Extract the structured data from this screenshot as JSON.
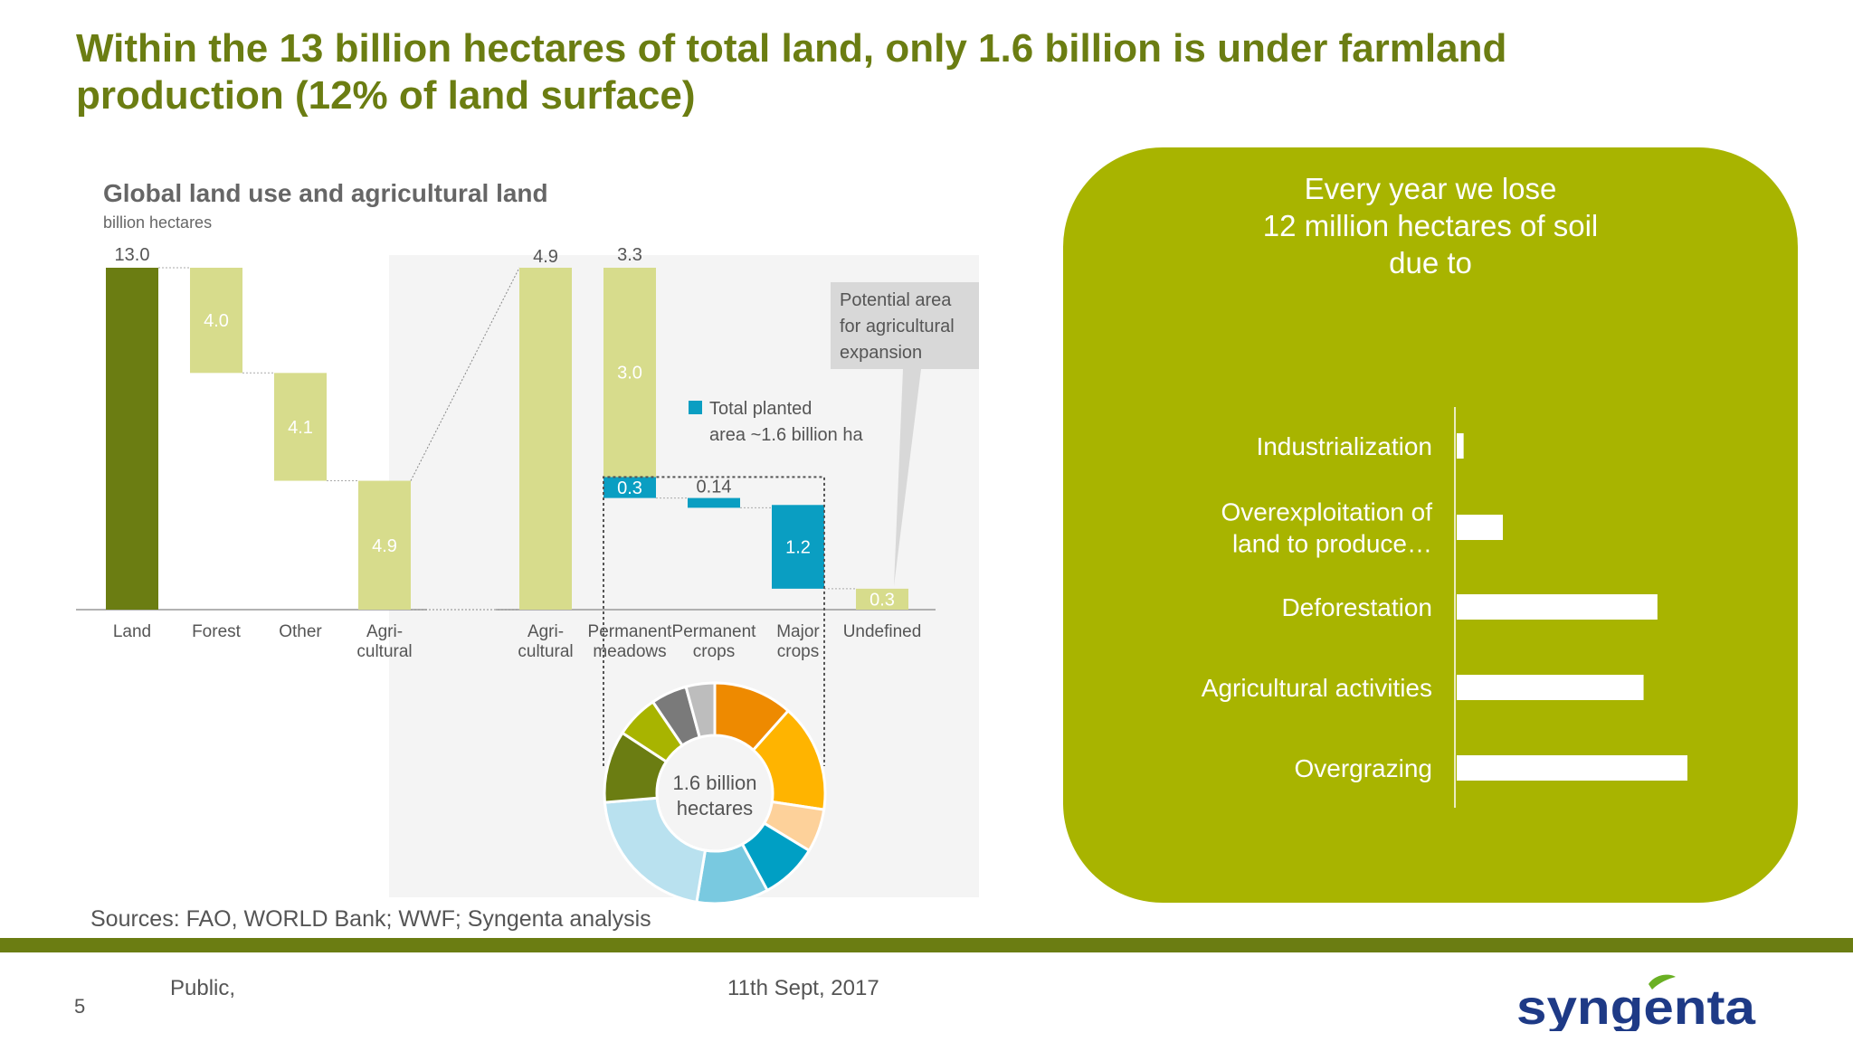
{
  "slide": {
    "title": "Within the 13 billion hectares of total land, only 1.6 billion is under farmland production (12% of land surface)",
    "page_number": "5",
    "classification": "Public,",
    "date": "11th Sept, 2017",
    "sources": "Sources: FAO, WORLD Bank; WWF; Syngenta analysis",
    "logo_text": "syngenta"
  },
  "colors": {
    "title_green": "#6b7d12",
    "dark_green": "#6b7d12",
    "light_green": "#d7dc8c",
    "teal": "#0a9ec2",
    "panel_green": "#a8b400",
    "logo_blue": "#1e3a86",
    "logo_leaf": "#6ab023"
  },
  "chart_data": [
    {
      "type": "bar",
      "title": "Global land use and agricultural land",
      "ylabel": "billion hectares",
      "ylim": [
        0,
        13.0
      ],
      "bars": [
        {
          "category": "Land",
          "label_lines": [
            "Land"
          ],
          "base": 0,
          "value": 13.0,
          "display": "13.0",
          "color": "#6b7d12",
          "label_pos": "above"
        },
        {
          "category": "Forest",
          "label_lines": [
            "Forest"
          ],
          "base": 9.0,
          "value": 4.0,
          "display": "4.0",
          "color": "#d7dc8c",
          "label_pos": "inside"
        },
        {
          "category": "Other",
          "label_lines": [
            "Other"
          ],
          "base": 4.9,
          "value": 4.1,
          "display": "4.1",
          "color": "#d7dc8c",
          "label_pos": "inside"
        },
        {
          "category": "Agri-cultural",
          "label_lines": [
            "Agri-",
            "cultural"
          ],
          "base": 0,
          "value": 4.9,
          "display": "4.9",
          "color": "#d7dc8c",
          "label_pos": "inside"
        }
      ]
    },
    {
      "type": "bar",
      "ylim": [
        0,
        4.9
      ],
      "bars": [
        {
          "category": "Agri-cultural",
          "label_lines": [
            "Agri-",
            "cultural"
          ],
          "base": 0,
          "value": 4.9,
          "display": "4.9",
          "color": "#d7dc8c",
          "label_pos": "above"
        },
        {
          "category": "Permanent meadows",
          "label_lines": [
            "Permanent",
            "meadows"
          ],
          "base": 1.6,
          "value": 3.3,
          "display": "3.3",
          "color": "#d7dc8c",
          "label_pos": "above",
          "split": {
            "light_value": 3.0,
            "light_display": "3.0",
            "teal_value": 0.3,
            "teal_display": "0.3"
          }
        },
        {
          "category": "Permanent crops",
          "label_lines": [
            "Permanent",
            "crops"
          ],
          "base": 1.46,
          "value": 0.14,
          "display": "0.14",
          "color": "#0a9ec2",
          "label_pos": "above"
        },
        {
          "category": "Major crops",
          "label_lines": [
            "Major",
            "crops"
          ],
          "base": 0.3,
          "value": 1.2,
          "display": "1.2",
          "color": "#0a9ec2",
          "label_pos": "inside"
        },
        {
          "category": "Undefined",
          "label_lines": [
            "Undefined"
          ],
          "base": 0,
          "value": 0.3,
          "display": "0.3",
          "color": "#d7dc8c",
          "label_pos": "inside"
        }
      ],
      "legend": {
        "lines": [
          "Total planted",
          "area ~1.6 billion ha"
        ],
        "color": "#0a9ec2"
      },
      "callout": {
        "lines": [
          "Potential area",
          "for agricultural",
          "expansion"
        ]
      }
    },
    {
      "type": "pie",
      "center_lines": [
        "1.6 billion",
        "hectares"
      ],
      "slices": [
        {
          "value": 11,
          "color": "#ee8a00"
        },
        {
          "value": 15,
          "color": "#ffb400"
        },
        {
          "value": 6,
          "color": "#fdd19a"
        },
        {
          "value": 8,
          "color": "#009fc4"
        },
        {
          "value": 10,
          "color": "#79c9e0"
        },
        {
          "value": 20,
          "color": "#b9e1ef"
        },
        {
          "value": 10,
          "color": "#6b7d12"
        },
        {
          "value": 6,
          "color": "#a8b400"
        },
        {
          "value": 5,
          "color": "#7a7a7a"
        },
        {
          "value": 4,
          "color": "#bdbdbd"
        }
      ]
    },
    {
      "type": "bar",
      "orientation": "horizontal",
      "title_lines": [
        "Every year we lose",
        "12 million hectares of soil",
        "due to"
      ],
      "xlim": [
        0,
        100
      ],
      "bars": [
        {
          "label_lines": [
            "Industrialization"
          ],
          "value": 3
        },
        {
          "label_lines": [
            "Overexploitation of",
            "land to produce…"
          ],
          "value": 20
        },
        {
          "label_lines": [
            "Deforestation"
          ],
          "value": 87
        },
        {
          "label_lines": [
            "Agricultural activities"
          ],
          "value": 81
        },
        {
          "label_lines": [
            "Overgrazing"
          ],
          "value": 100
        }
      ]
    }
  ]
}
